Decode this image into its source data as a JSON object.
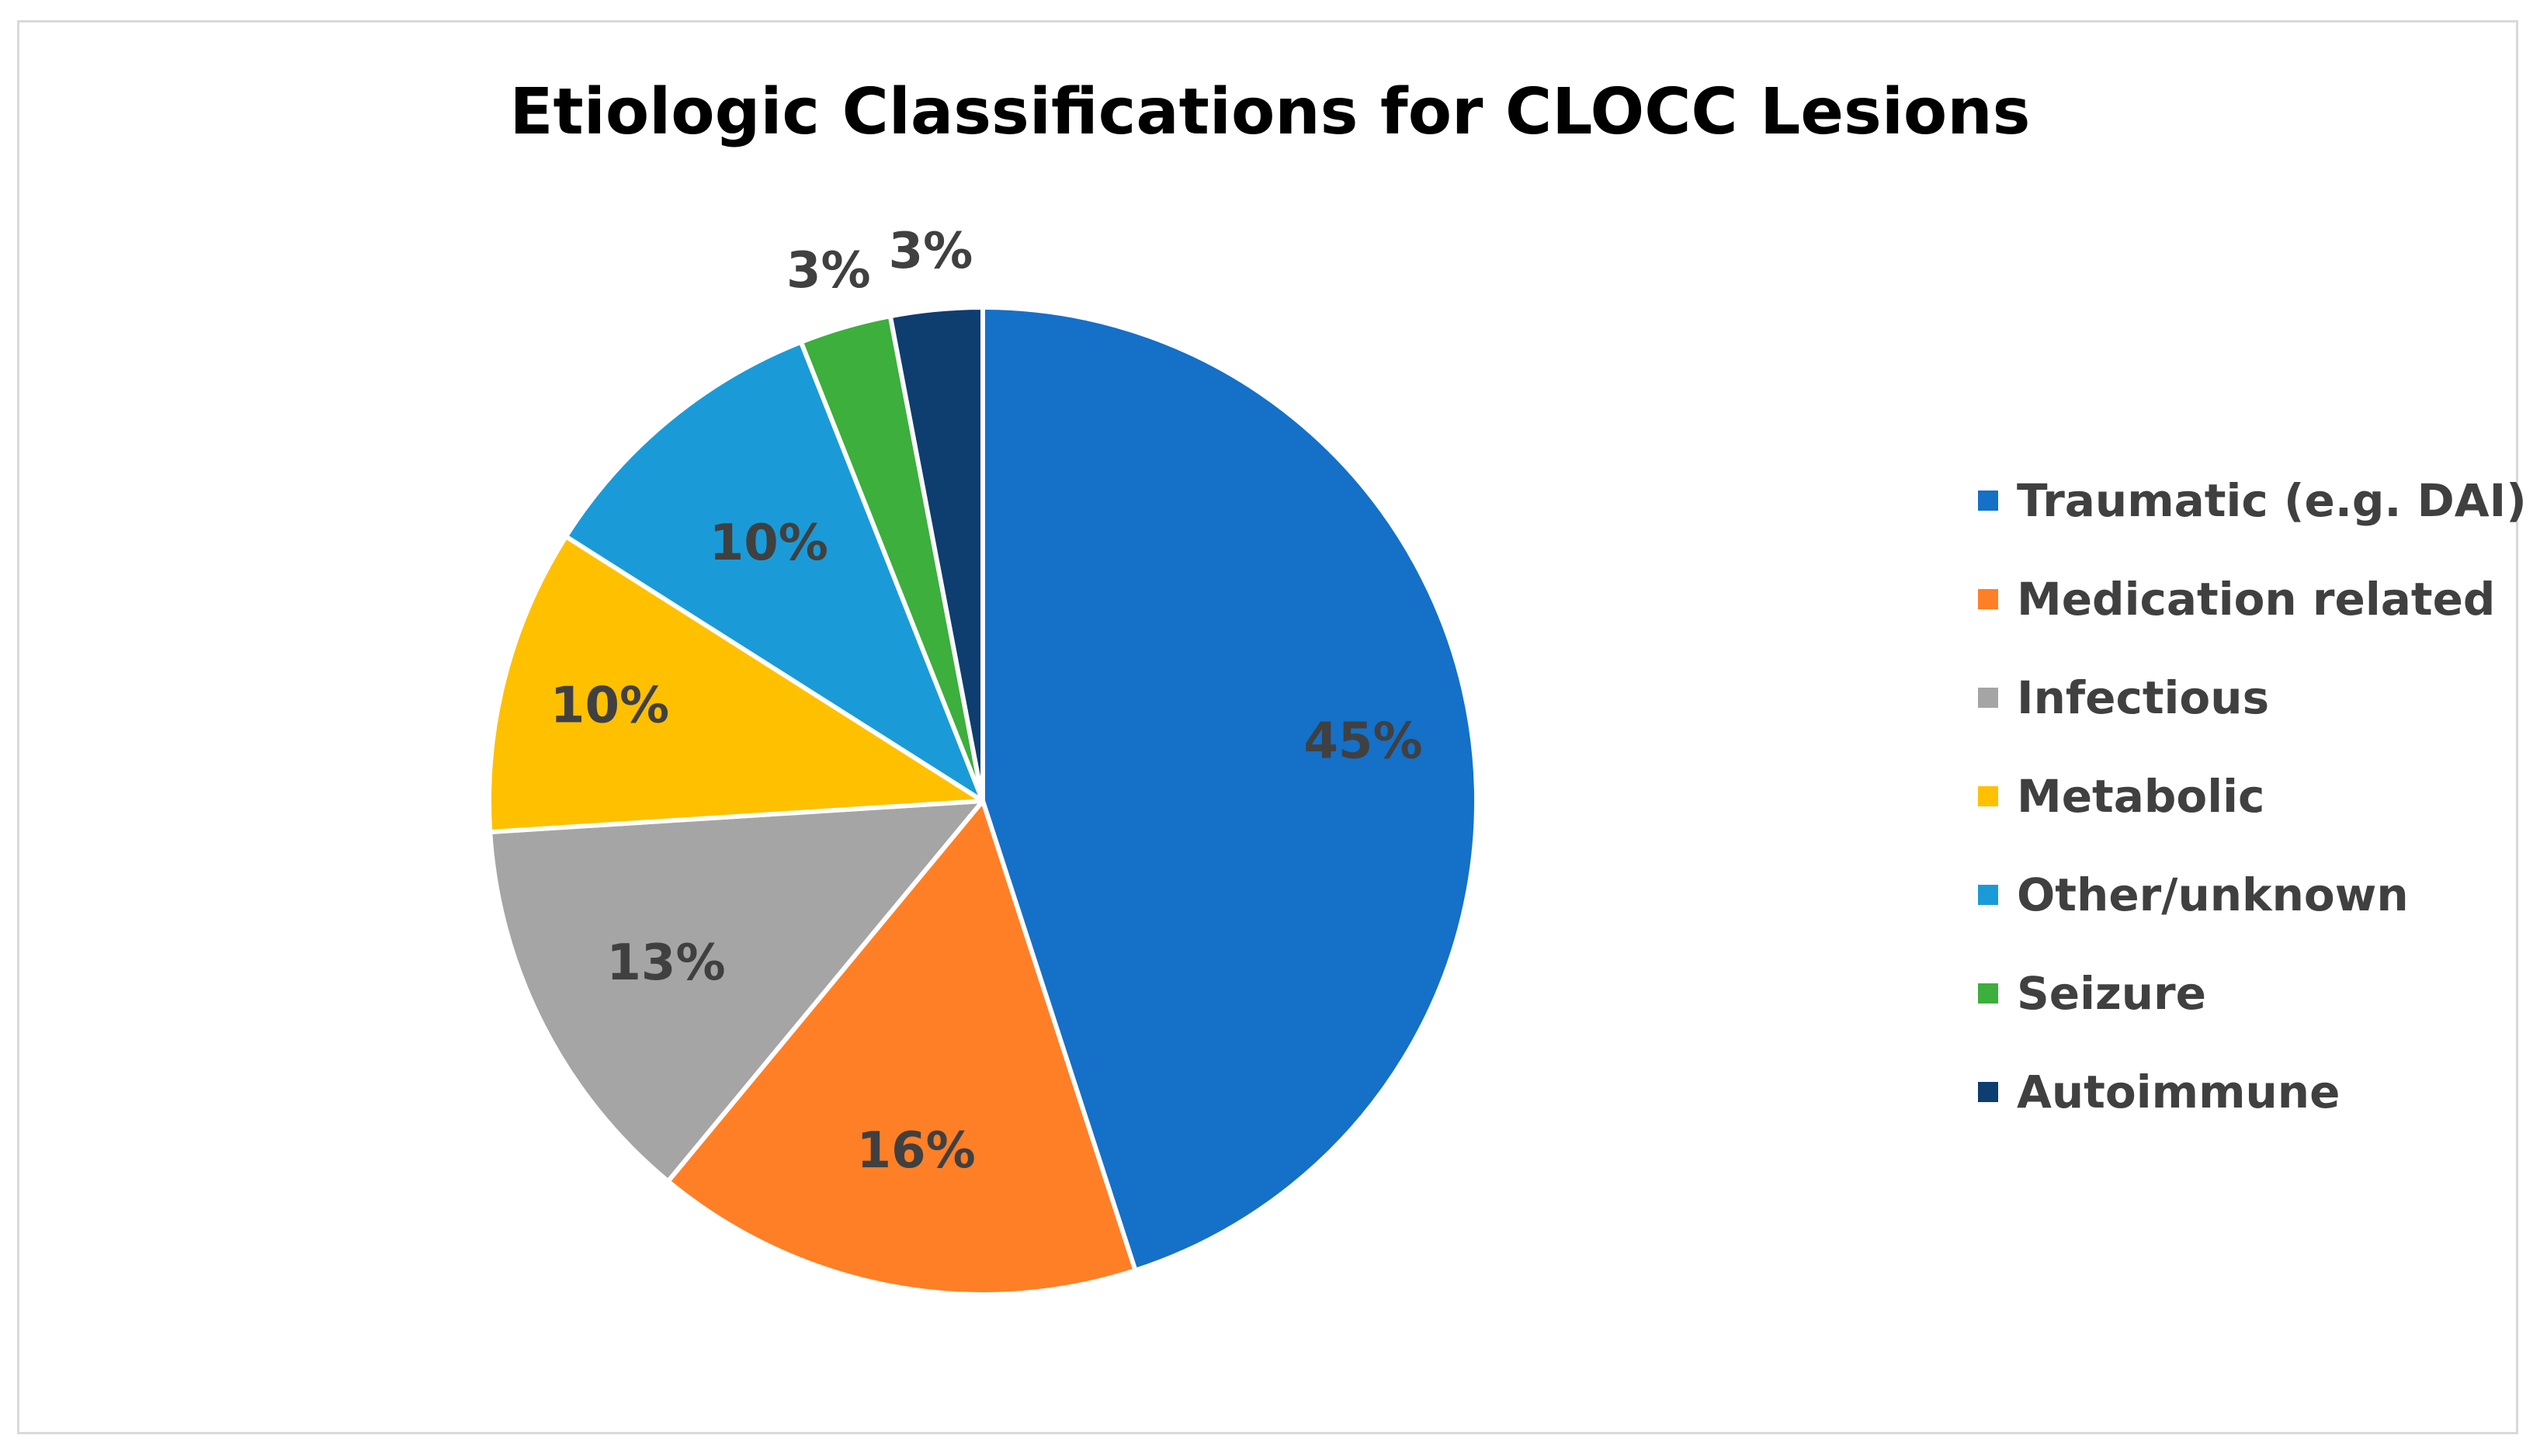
{
  "chart_data": {
    "type": "pie",
    "title": "Etiologic Classifications for CLOCC Lesions",
    "legend_position": "right",
    "slices": [
      {
        "name": "Traumatic (e.g. DAI)",
        "value": 45,
        "label": "45%",
        "color": "#1570C8"
      },
      {
        "name": "Medication related",
        "value": 16,
        "label": "16%",
        "color": "#FF7F27"
      },
      {
        "name": "Infectious",
        "value": 13,
        "label": "13%",
        "color": "#A5A5A5"
      },
      {
        "name": "Metabolic",
        "value": 10,
        "label": "10%",
        "color": "#FFC000"
      },
      {
        "name": "Other/unknown",
        "value": 10,
        "label": "10%",
        "color": "#1A9BD7"
      },
      {
        "name": "Seizure",
        "value": 3,
        "label": "3%",
        "color": "#3CAF3C"
      },
      {
        "name": "Autoimmune",
        "value": 3,
        "label": "3%",
        "color": "#0E3D70"
      }
    ]
  }
}
